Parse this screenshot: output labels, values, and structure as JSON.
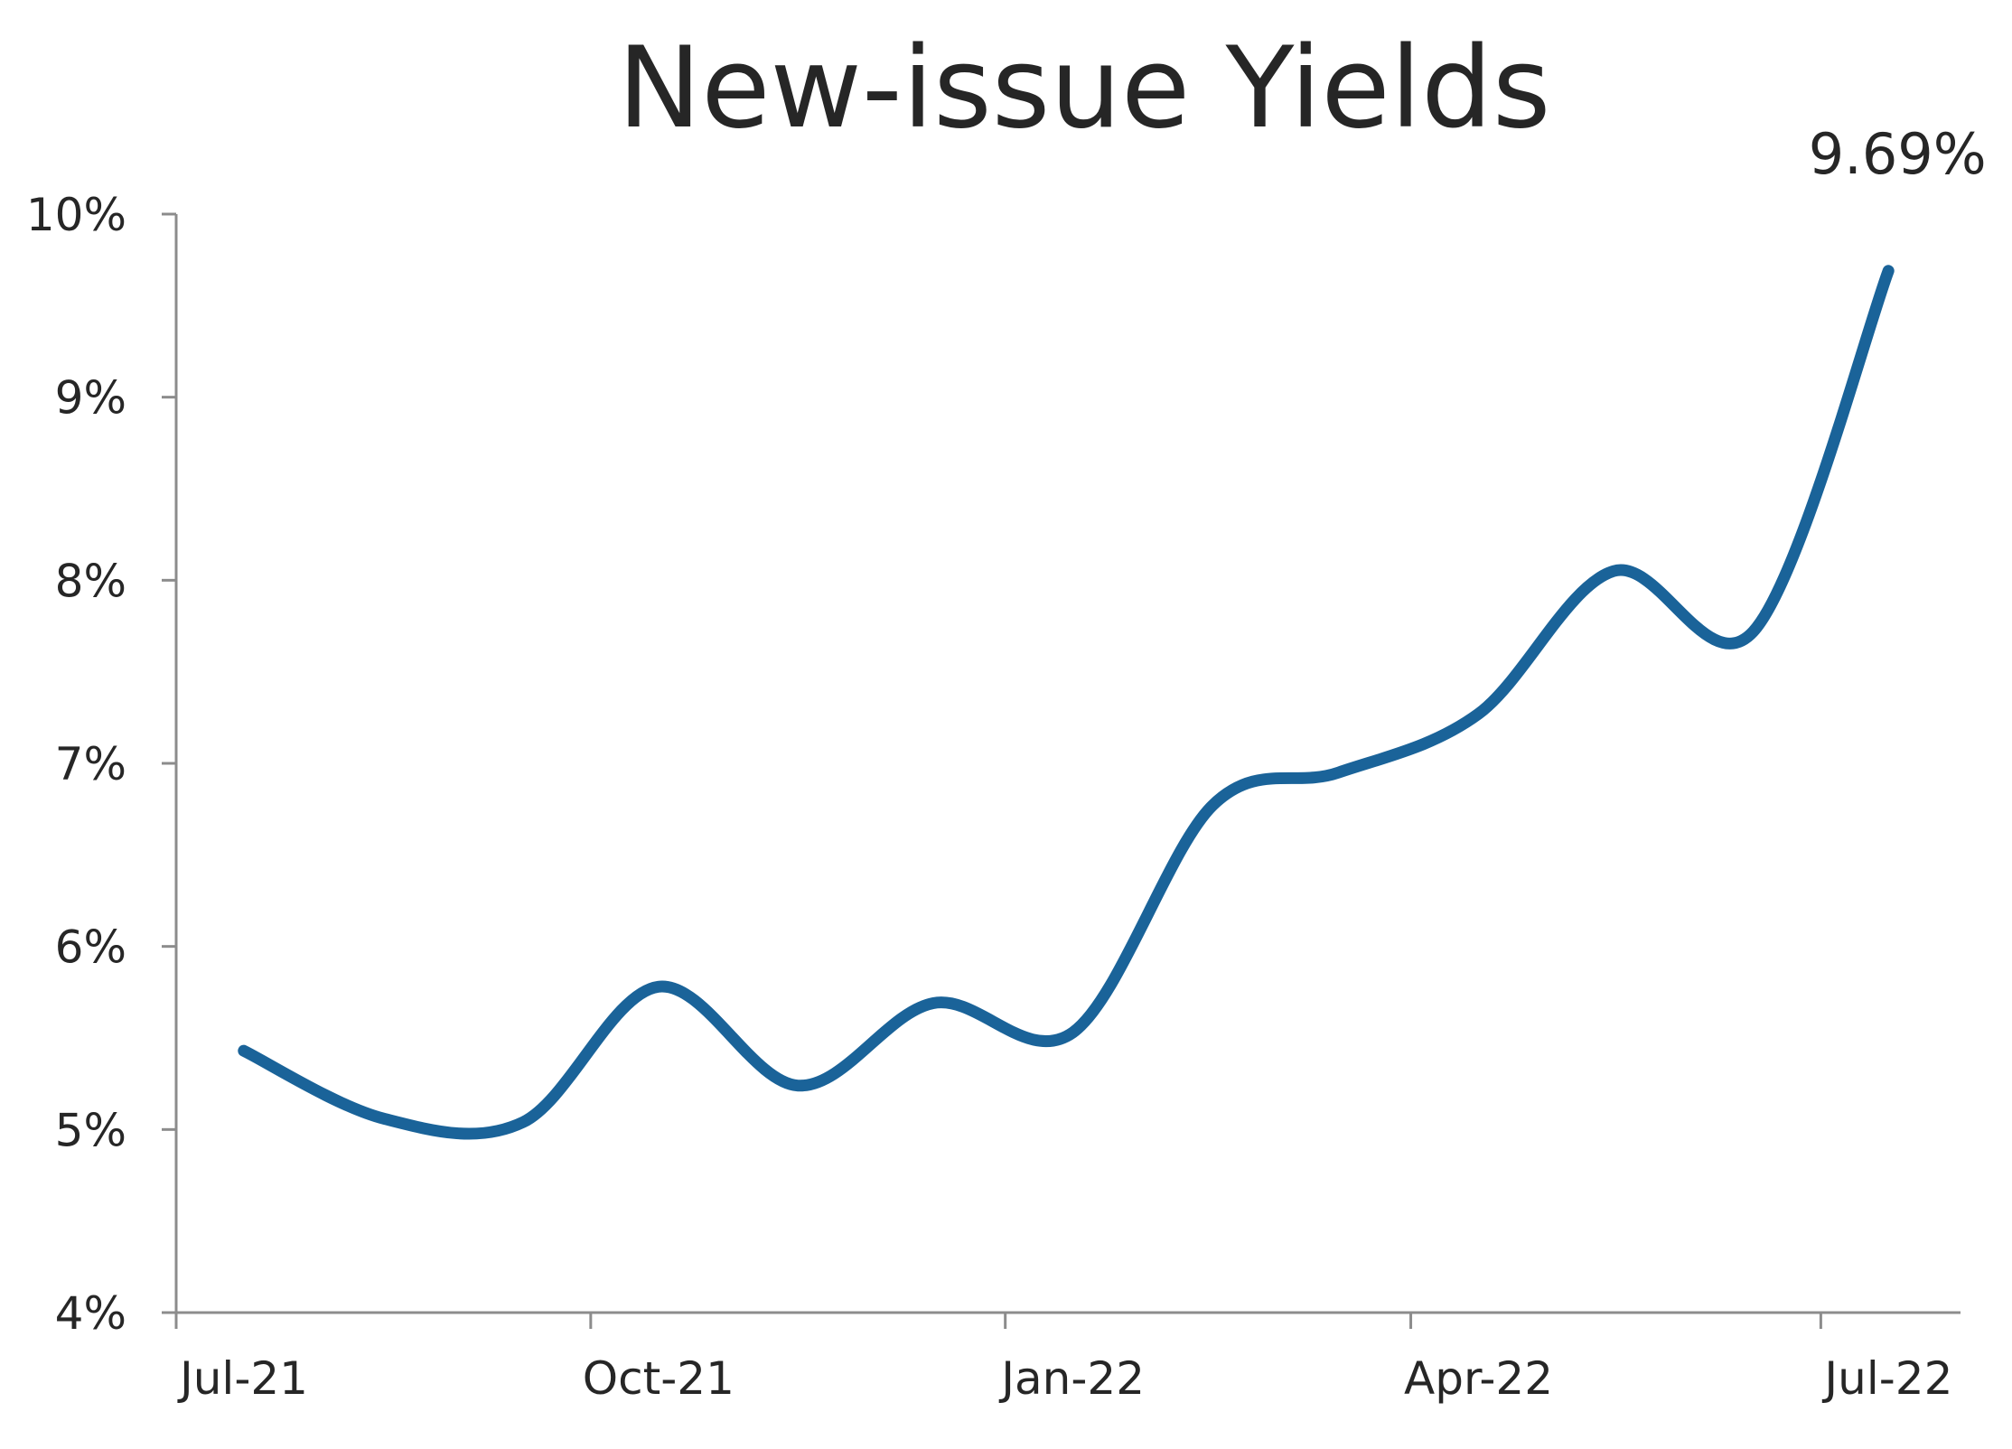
{
  "chart_data": {
    "type": "line",
    "title": "New-issue Yields",
    "xlabel": "",
    "ylabel": "",
    "x": [
      "2021-07-16",
      "2021-08-16",
      "2021-09-16",
      "2021-10-16",
      "2021-11-16",
      "2021-12-16",
      "2022-01-16",
      "2022-02-16",
      "2022-03-16",
      "2022-04-16",
      "2022-05-16",
      "2022-06-16",
      "2022-07-16"
    ],
    "series": [
      {
        "values": [
          5.43,
          5.06,
          5.04,
          5.78,
          5.24,
          5.69,
          5.53,
          6.77,
          6.95,
          7.27,
          8.05,
          7.72,
          9.69
        ],
        "color": "#1a6399"
      }
    ],
    "ylim": [
      4,
      10
    ],
    "yticks": [
      4,
      5,
      6,
      7,
      8,
      9,
      10
    ],
    "ytick_labels": [
      "4%",
      "5%",
      "6%",
      "7%",
      "8%",
      "9%",
      "10%"
    ],
    "xticks": [
      "2021-07-01",
      "2021-10-01",
      "2022-01-01",
      "2022-04-01",
      "2022-07-01"
    ],
    "xtick_labels": [
      "Jul-21",
      "Oct-21",
      "Jan-22",
      "Apr-22",
      "Jul-22"
    ],
    "xlim": [
      "2021-07-01",
      "2022-08-01"
    ],
    "annotations": [
      {
        "text": "9.69%",
        "x": "2022-07-16",
        "y": 9.69
      }
    ],
    "grid": false,
    "legend": false
  }
}
